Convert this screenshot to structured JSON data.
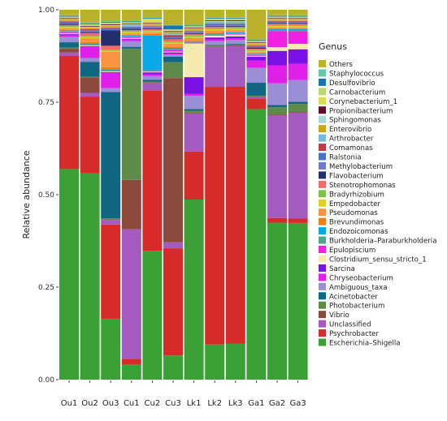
{
  "chart_data": {
    "type": "bar",
    "stacked": true,
    "title": "",
    "xlabel": "",
    "ylabel": "Relative abundance",
    "ylim": [
      0,
      1
    ],
    "yticks": [
      "0.00",
      "0.25",
      "0.50",
      "0.75",
      "1.00"
    ],
    "grid": false,
    "legend_title": "Genus",
    "legend_position": "right",
    "categories": [
      "Ou1",
      "Ou2",
      "Ou3",
      "Cu1",
      "Cu2",
      "Cu3",
      "Lk1",
      "Lk2",
      "Lk3",
      "Ga1",
      "Ga2",
      "Ga3"
    ],
    "series": [
      {
        "name": "Escherichia–Shigella",
        "color": "#3ba035",
        "values": [
          0.583,
          0.551,
          0.159,
          0.042,
          0.352,
          0.064,
          0.481,
          0.094,
          0.096,
          0.73,
          0.435,
          0.432
        ]
      },
      {
        "name": "Psychrobacter",
        "color": "#d72b2b",
        "values": [
          0.313,
          0.205,
          0.246,
          0.015,
          0.438,
          0.284,
          0.128,
          0.688,
          0.683,
          0.029,
          0.013,
          0.012
        ]
      },
      {
        "name": "Unclassified",
        "color": "#a35bbf",
        "values": [
          0.01,
          0.01,
          0.012,
          0.353,
          0.02,
          0.016,
          0.102,
          0.106,
          0.109,
          0.003,
          0.285,
          0.292
        ]
      },
      {
        "name": "Vibrio",
        "color": "#8b4a3c",
        "values": [
          0.01,
          0.04,
          0.002,
          0.135,
          0.002,
          0.435,
          0.002,
          0.002,
          0.002,
          0.002,
          0.002,
          0.002
        ]
      },
      {
        "name": "Photobacterium",
        "color": "#5e8a4a",
        "values": [
          0.003,
          0.003,
          0.002,
          0.358,
          0.002,
          0.042,
          0.005,
          0.002,
          0.002,
          0.002,
          0.02,
          0.022
        ]
      },
      {
        "name": "Acinetobacter",
        "color": "#0f6782",
        "values": [
          0.015,
          0.04,
          0.33,
          0.005,
          0.005,
          0.015,
          0.005,
          0.002,
          0.002,
          0.035,
          0.006,
          0.006
        ]
      },
      {
        "name": "Ambiguous_taxa",
        "color": "#9a8ed6",
        "values": [
          0.015,
          0.01,
          0.01,
          0.015,
          0.01,
          0.005,
          0.035,
          0.01,
          0.01,
          0.04,
          0.06,
          0.06
        ]
      },
      {
        "name": "Chryseobacterium",
        "color": "#e020e8",
        "values": [
          0.006,
          0.03,
          0.04,
          0.005,
          0.005,
          0.003,
          0.005,
          0.005,
          0.004,
          0.02,
          0.05,
          0.045
        ]
      },
      {
        "name": "Sarcina",
        "color": "#7a12e6",
        "values": [
          0.002,
          0.002,
          0.002,
          0.002,
          0.005,
          0.003,
          0.045,
          0.005,
          0.005,
          0.01,
          0.04,
          0.04
        ]
      },
      {
        "name": "Clostridium_sensu_stricto_1",
        "color": "#f5eab0",
        "values": [
          0.002,
          0.002,
          0.002,
          0.002,
          0.002,
          0.002,
          0.09,
          0.005,
          0.005,
          0.002,
          0.01,
          0.015
        ]
      },
      {
        "name": "Epulopiscium",
        "color": "#ee22e0",
        "values": [
          0.002,
          0.002,
          0.002,
          0.002,
          0.002,
          0.005,
          0.002,
          0.002,
          0.002,
          0.002,
          0.045,
          0.035
        ]
      },
      {
        "name": "Burkholderia–Paraburkholderia",
        "color": "#4ba88a",
        "values": [
          0.002,
          0.002,
          0.002,
          0.002,
          0.002,
          0.002,
          0.002,
          0.002,
          0.002,
          0.002,
          0.003,
          0.003
        ]
      },
      {
        "name": "Endozoicomonas",
        "color": "#0aa9e6",
        "values": [
          0.002,
          0.002,
          0.002,
          0.002,
          0.095,
          0.003,
          0.002,
          0.002,
          0.002,
          0.002,
          0.003,
          0.003
        ]
      },
      {
        "name": "Brevundimonas",
        "color": "#f07f1a",
        "values": [
          0.003,
          0.003,
          0.005,
          0.003,
          0.004,
          0.003,
          0.003,
          0.002,
          0.002,
          0.002,
          0.002,
          0.002
        ]
      },
      {
        "name": "Pseudomonas",
        "color": "#fa9442",
        "values": [
          0.005,
          0.01,
          0.04,
          0.004,
          0.004,
          0.008,
          0.006,
          0.006,
          0.004,
          0.003,
          0.003,
          0.003
        ]
      },
      {
        "name": "Empedobacter",
        "color": "#e0d21c",
        "values": [
          0.003,
          0.003,
          0.003,
          0.003,
          0.003,
          0.003,
          0.003,
          0.003,
          0.003,
          0.003,
          0.003,
          0.003
        ]
      },
      {
        "name": "Bradyrhizobium",
        "color": "#7fc14a",
        "values": [
          0.003,
          0.003,
          0.003,
          0.003,
          0.003,
          0.003,
          0.004,
          0.003,
          0.003,
          0.003,
          0.003,
          0.003
        ]
      },
      {
        "name": "Stenotrophomonas",
        "color": "#f26b6b",
        "values": [
          0.003,
          0.008,
          0.01,
          0.003,
          0.003,
          0.006,
          0.003,
          0.004,
          0.003,
          0.003,
          0.003,
          0.003
        ]
      },
      {
        "name": "Flavobacterium",
        "color": "#222e6e",
        "values": [
          0.003,
          0.003,
          0.04,
          0.003,
          0.002,
          0.002,
          0.002,
          0.002,
          0.002,
          0.003,
          0.002,
          0.002
        ]
      },
      {
        "name": "Methylobacterium",
        "color": "#6e7ad0",
        "values": [
          0.002,
          0.002,
          0.002,
          0.002,
          0.002,
          0.002,
          0.002,
          0.002,
          0.002,
          0.002,
          0.002,
          0.002
        ]
      },
      {
        "name": "Ralstonia",
        "color": "#4b71c4",
        "values": [
          0.002,
          0.002,
          0.002,
          0.002,
          0.002,
          0.002,
          0.002,
          0.002,
          0.002,
          0.002,
          0.002,
          0.002
        ]
      },
      {
        "name": "Comamonas",
        "color": "#c23b4b",
        "values": [
          0.003,
          0.003,
          0.003,
          0.002,
          0.002,
          0.005,
          0.002,
          0.002,
          0.002,
          0.002,
          0.002,
          0.002
        ]
      },
      {
        "name": "Arthrobacter",
        "color": "#76b8e0",
        "values": [
          0.002,
          0.002,
          0.002,
          0.002,
          0.002,
          0.002,
          0.002,
          0.002,
          0.002,
          0.002,
          0.002,
          0.002
        ]
      },
      {
        "name": "Enterovibrio",
        "color": "#c8a81a",
        "values": [
          0.003,
          0.003,
          0.003,
          0.002,
          0.003,
          0.004,
          0.003,
          0.003,
          0.003,
          0.002,
          0.002,
          0.002
        ]
      },
      {
        "name": "Sphingomonas",
        "color": "#a9d6d8",
        "values": [
          0.002,
          0.002,
          0.002,
          0.002,
          0.002,
          0.002,
          0.002,
          0.002,
          0.002,
          0.002,
          0.002,
          0.002
        ]
      },
      {
        "name": "Propionibacterium",
        "color": "#640a2a",
        "values": [
          0.002,
          0.002,
          0.002,
          0.002,
          0.002,
          0.002,
          0.002,
          0.002,
          0.002,
          0.002,
          0.002,
          0.002
        ]
      },
      {
        "name": "Corynebacterium_1",
        "color": "#d8dc52",
        "values": [
          0.002,
          0.002,
          0.002,
          0.002,
          0.01,
          0.003,
          0.002,
          0.002,
          0.002,
          0.002,
          0.002,
          0.002
        ]
      },
      {
        "name": "Carnobacterium",
        "color": "#bcd870",
        "values": [
          0.002,
          0.002,
          0.002,
          0.002,
          0.002,
          0.002,
          0.002,
          0.002,
          0.002,
          0.002,
          0.002,
          0.002
        ]
      },
      {
        "name": "Desulfovibrio",
        "color": "#1576b3",
        "values": [
          0.002,
          0.002,
          0.002,
          0.002,
          0.002,
          0.01,
          0.002,
          0.002,
          0.002,
          0.002,
          0.002,
          0.002
        ]
      },
      {
        "name": "Staphylococcus",
        "color": "#62c9a2",
        "values": [
          0.002,
          0.002,
          0.002,
          0.002,
          0.002,
          0.002,
          0.002,
          0.002,
          0.002,
          0.002,
          0.002,
          0.002
        ]
      },
      {
        "name": "Others",
        "color": "#b9b22a",
        "values": [
          0.015,
          0.035,
          0.03,
          0.03,
          0.02,
          0.04,
          0.04,
          0.02,
          0.02,
          0.08,
          0.015,
          0.015
        ]
      }
    ]
  }
}
